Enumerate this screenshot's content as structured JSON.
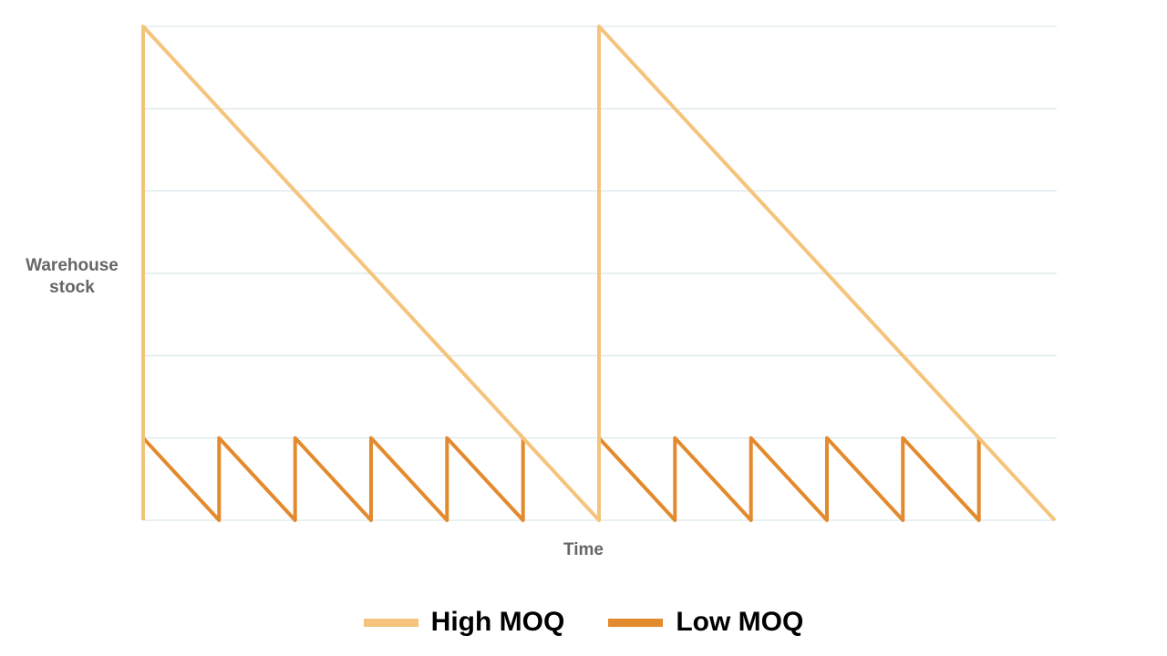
{
  "chart_data": {
    "type": "line",
    "title": "",
    "xlabel": "Time",
    "ylabel": "Warehouse stock",
    "xlim": [
      0,
      12
    ],
    "ylim": [
      0,
      6
    ],
    "grid": true,
    "tick_labels_shown": false,
    "legend_position": "bottom",
    "series": [
      {
        "name": "High MOQ",
        "color": "#F5C47C",
        "points": [
          [
            0,
            0
          ],
          [
            0,
            6
          ],
          [
            6,
            0
          ],
          [
            6,
            6
          ],
          [
            12,
            0
          ]
        ]
      },
      {
        "name": "Low MOQ",
        "color": "#E38A2E",
        "points": [
          [
            0,
            1
          ],
          [
            1,
            0
          ],
          [
            1,
            1
          ],
          [
            2,
            0
          ],
          [
            2,
            1
          ],
          [
            3,
            0
          ],
          [
            3,
            1
          ],
          [
            4,
            0
          ],
          [
            4,
            1
          ],
          [
            5,
            0
          ],
          [
            5,
            1
          ],
          null,
          [
            6,
            1
          ],
          [
            7,
            0
          ],
          [
            7,
            1
          ],
          [
            8,
            0
          ],
          [
            8,
            1
          ],
          [
            9,
            0
          ],
          [
            9,
            1
          ],
          [
            10,
            0
          ],
          [
            10,
            1
          ],
          [
            11,
            0
          ],
          [
            11,
            1
          ]
        ]
      }
    ]
  }
}
